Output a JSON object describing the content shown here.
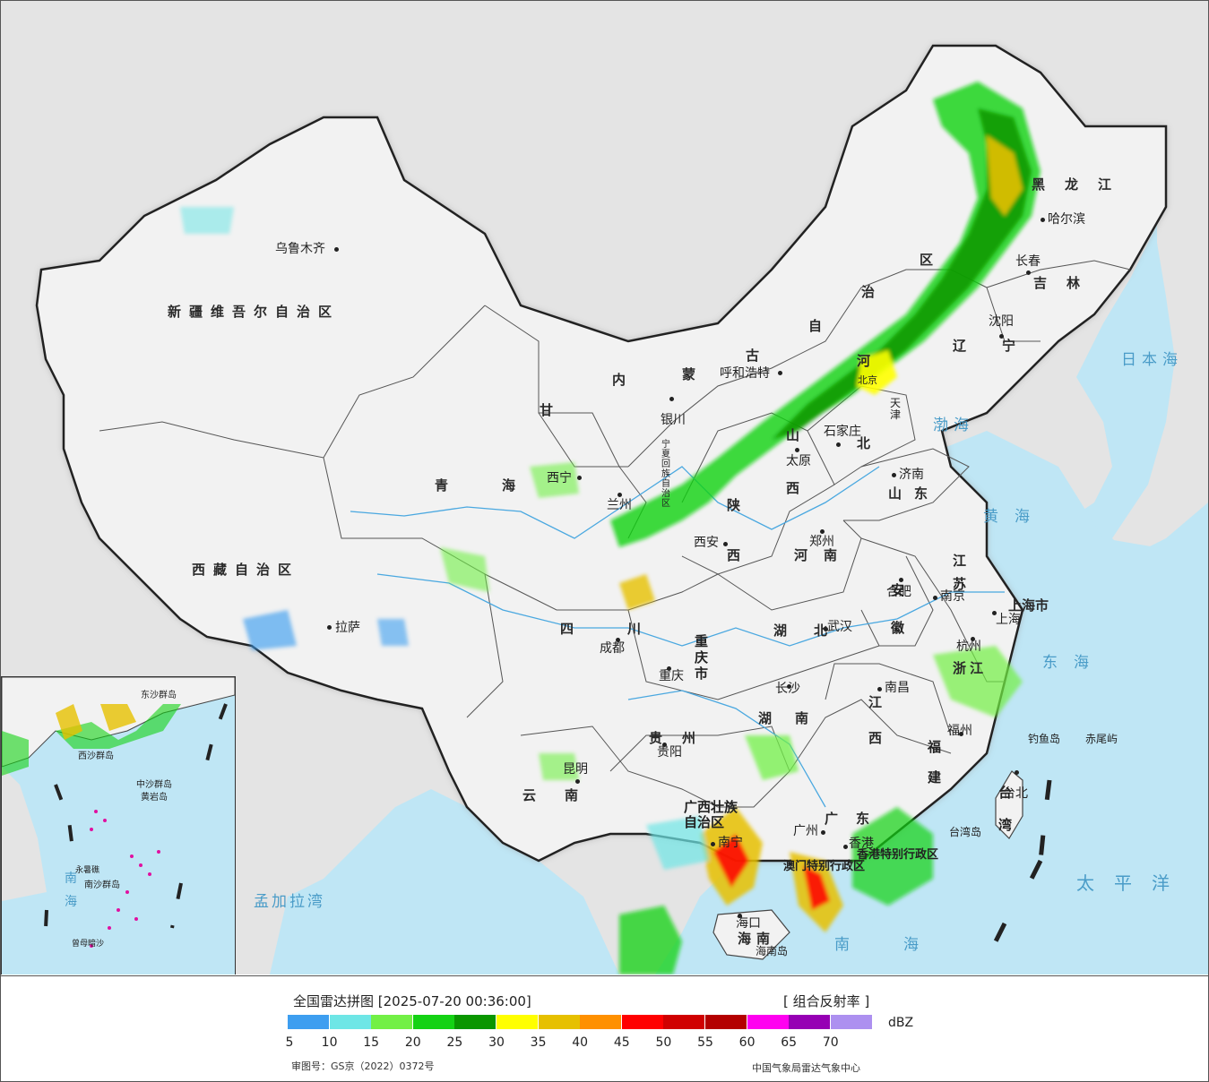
{
  "colors": {
    "ocean": "#bfe6f5",
    "land_cn": "#f2f2f2",
    "land_other": "#e6e6e6",
    "border": "#222222",
    "dbz_scale": [
      "#3d9ef0",
      "#6ee6e6",
      "#72f045",
      "#14d214",
      "#0a9600",
      "#ffff00",
      "#e6c000",
      "#ff9000",
      "#ff0000",
      "#d00000",
      "#b40000",
      "#ff00f0",
      "#9600b4",
      "#ad90f0"
    ]
  },
  "map": {
    "provinces": [
      {
        "id": "xinjiang",
        "text": "新疆维吾尔自治区"
      },
      {
        "id": "xizang",
        "text": "西藏自治区"
      },
      {
        "id": "qinghai",
        "text": "青海"
      },
      {
        "id": "gansu",
        "text": "甘"
      },
      {
        "id": "neimenggu_1",
        "text": "内"
      },
      {
        "id": "neimenggu_2",
        "text": "蒙"
      },
      {
        "id": "neimenggu_3",
        "text": "古"
      },
      {
        "id": "neimenggu_4",
        "text": "自"
      },
      {
        "id": "neimenggu_5",
        "text": "治"
      },
      {
        "id": "neimenggu_6",
        "text": "区"
      },
      {
        "id": "heilongjiang",
        "text": "黑龙江"
      },
      {
        "id": "jilin",
        "text": "吉林"
      },
      {
        "id": "liaoning",
        "text": "辽宁"
      },
      {
        "id": "hebei_1",
        "text": "河"
      },
      {
        "id": "hebei_2",
        "text": "北"
      },
      {
        "id": "shanxi_1",
        "text": "山"
      },
      {
        "id": "shanxi_2",
        "text": "西"
      },
      {
        "id": "shandong",
        "text": "山东"
      },
      {
        "id": "henan",
        "text": "河南"
      },
      {
        "id": "shaanxi_1",
        "text": "陕"
      },
      {
        "id": "shaanxi_2",
        "text": "西"
      },
      {
        "id": "ningxia",
        "text": "宁夏回族自治区"
      },
      {
        "id": "sichuan",
        "text": "四川"
      },
      {
        "id": "chongqing",
        "text": "重庆市"
      },
      {
        "id": "hubei",
        "text": "湖北"
      },
      {
        "id": "hunan",
        "text": "湖南"
      },
      {
        "id": "anhui",
        "text": "安徽"
      },
      {
        "id": "jiangsu",
        "text": "江苏"
      },
      {
        "id": "shanghai",
        "text": "上海市"
      },
      {
        "id": "zhejiang",
        "text": "浙江"
      },
      {
        "id": "jiangxi_1",
        "text": "江"
      },
      {
        "id": "jiangxi_2",
        "text": "西"
      },
      {
        "id": "fujian",
        "text": "福建"
      },
      {
        "id": "guizhou",
        "text": "贵州"
      },
      {
        "id": "yunnan",
        "text": "云南"
      },
      {
        "id": "guangxi",
        "text": "广西壮族自治区"
      },
      {
        "id": "guangdong",
        "text": "广东"
      },
      {
        "id": "hainan",
        "text": "海南"
      },
      {
        "id": "taiwan",
        "text": "台湾"
      },
      {
        "id": "hongkong",
        "text": "香港特别行政区"
      },
      {
        "id": "macau",
        "text": "澳门特别行政区"
      },
      {
        "id": "tianjin",
        "text": "天津"
      },
      {
        "id": "beijing",
        "text": "北京"
      }
    ],
    "cities": [
      {
        "id": "urumqi",
        "text": "乌鲁木齐"
      },
      {
        "id": "lhasa",
        "text": "拉萨"
      },
      {
        "id": "xining",
        "text": "西宁"
      },
      {
        "id": "lanzhou",
        "text": "兰州"
      },
      {
        "id": "yinchuan",
        "text": "银川"
      },
      {
        "id": "hohhot",
        "text": "呼和浩特"
      },
      {
        "id": "harbin",
        "text": "哈尔滨"
      },
      {
        "id": "changchun",
        "text": "长春"
      },
      {
        "id": "shenyang",
        "text": "沈阳"
      },
      {
        "id": "shijiazhuang",
        "text": "石家庄"
      },
      {
        "id": "taiyuan",
        "text": "太原"
      },
      {
        "id": "jinan",
        "text": "济南"
      },
      {
        "id": "zhengzhou",
        "text": "郑州"
      },
      {
        "id": "xian",
        "text": "西安"
      },
      {
        "id": "hefei",
        "text": "合肥"
      },
      {
        "id": "nanjing",
        "text": "南京"
      },
      {
        "id": "shanghai_c",
        "text": "上海"
      },
      {
        "id": "hangzhou",
        "text": "杭州"
      },
      {
        "id": "wuhan",
        "text": "武汉"
      },
      {
        "id": "chengdu",
        "text": "成都"
      },
      {
        "id": "chongqing_c",
        "text": "重庆"
      },
      {
        "id": "changsha",
        "text": "长沙"
      },
      {
        "id": "nanchang",
        "text": "南昌"
      },
      {
        "id": "fuzhou",
        "text": "福州"
      },
      {
        "id": "guiyang",
        "text": "贵阳"
      },
      {
        "id": "kunming",
        "text": "昆明"
      },
      {
        "id": "nanning",
        "text": "南宁"
      },
      {
        "id": "guangzhou",
        "text": "广州"
      },
      {
        "id": "xianggang",
        "text": "香港"
      },
      {
        "id": "haikou",
        "text": "海口"
      },
      {
        "id": "taipei",
        "text": "台北"
      }
    ],
    "islands": [
      {
        "id": "diaoyu",
        "text": "钓鱼岛"
      },
      {
        "id": "chiwei",
        "text": "赤尾屿"
      },
      {
        "id": "taiwan_dao",
        "text": "台湾岛"
      },
      {
        "id": "hainan_dao",
        "text": "海南岛"
      }
    ],
    "seas": [
      {
        "id": "bohai",
        "text": "渤海"
      },
      {
        "id": "huanghai",
        "text": "黄海"
      },
      {
        "id": "donghai",
        "text": "东海"
      },
      {
        "id": "nanhai",
        "text": "南海"
      },
      {
        "id": "riben",
        "text": "日本海"
      },
      {
        "id": "taipingyang",
        "text": "太平洋"
      },
      {
        "id": "mengjiala",
        "text": "孟加拉湾"
      }
    ],
    "inset": {
      "labels": [
        "南海",
        "东沙群岛",
        "西沙群岛",
        "中沙群岛",
        "黄岩岛",
        "南沙群岛",
        "永暑礁",
        "曾母暗沙"
      ]
    }
  },
  "legend": {
    "title": "全国雷达拼图 [2025-07-20 00:36:00]",
    "product": "[ 组合反射率 ]",
    "unit": "dBZ",
    "ticks": [
      "5",
      "10",
      "15",
      "20",
      "25",
      "30",
      "35",
      "40",
      "45",
      "50",
      "55",
      "60",
      "65",
      "70"
    ],
    "map_approval": "审图号：GS京（2022）0372号",
    "producer": "中国气象局雷达气象中心"
  }
}
